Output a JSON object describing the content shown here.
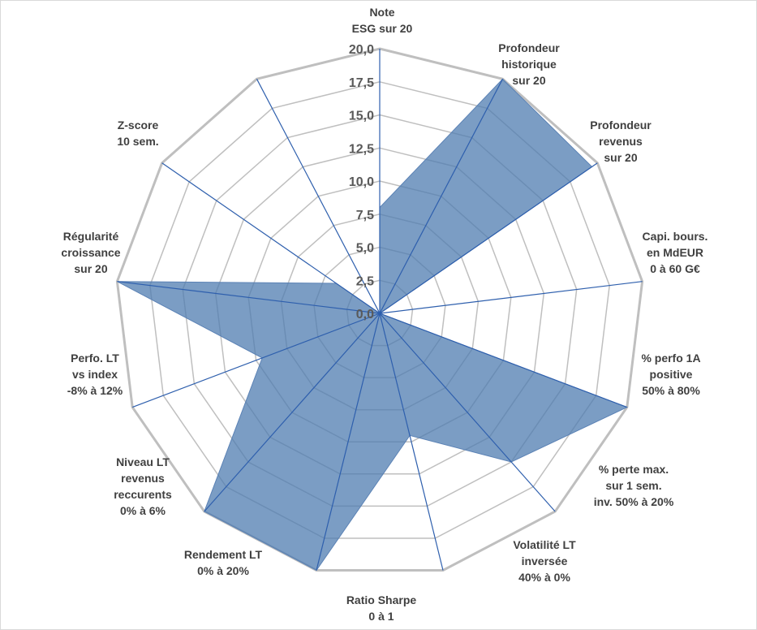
{
  "chart_data": {
    "type": "radar",
    "title": "",
    "scale": {
      "min": 0,
      "max": 20,
      "step": 2.5
    },
    "tick_labels": [
      "0,0",
      "2,5",
      "5,0",
      "7,5",
      "10,0",
      "12,5",
      "15,0",
      "17,5",
      "20,0"
    ],
    "axes": [
      {
        "label": [
          "Note",
          "ESG sur 20"
        ],
        "value": 8.0
      },
      {
        "label": [
          "Profondeur",
          "historique",
          "sur 20"
        ],
        "value": 20.0
      },
      {
        "label": [
          "Profondeur",
          "revenus",
          "sur 20"
        ],
        "value": 19.5
      },
      {
        "label": [
          "Capi. bours.",
          "en MdEUR",
          "0 à 60 G€"
        ],
        "value": 0.0
      },
      {
        "label": [
          "% perfo 1A",
          "positive",
          "50% à 80%"
        ],
        "value": 20.0
      },
      {
        "label": [
          "% perte max.",
          "sur 1 sem.",
          "inv. 50% à 20%"
        ],
        "value": 15.0
      },
      {
        "label": [
          "Volatilité LT",
          "inversée",
          "40% à 0%"
        ],
        "value": 9.5
      },
      {
        "label": [
          "Ratio Sharpe",
          "0 à 1"
        ],
        "value": 20.0
      },
      {
        "label": [
          "Rendement LT",
          "0% à 20%"
        ],
        "value": 20.0
      },
      {
        "label": [
          "Niveau LT",
          "revenus",
          "reccurents",
          "0% à 6%"
        ],
        "value": 9.5
      },
      {
        "label": [
          "Perfo. LT",
          "vs index",
          "-8% à 12%"
        ],
        "value": 20.0
      },
      {
        "label": [
          "Régularité",
          "croissance",
          "sur 20"
        ],
        "value": 4.0
      },
      {
        "label": [
          "Z-score",
          "10 sem."
        ],
        "value": 0.0
      }
    ],
    "colors": {
      "fill": "#4f7cb0",
      "fill_opacity": 0.75,
      "spoke": "#2e5fad",
      "grid": "#bfbfbf",
      "text": "#404040"
    }
  }
}
